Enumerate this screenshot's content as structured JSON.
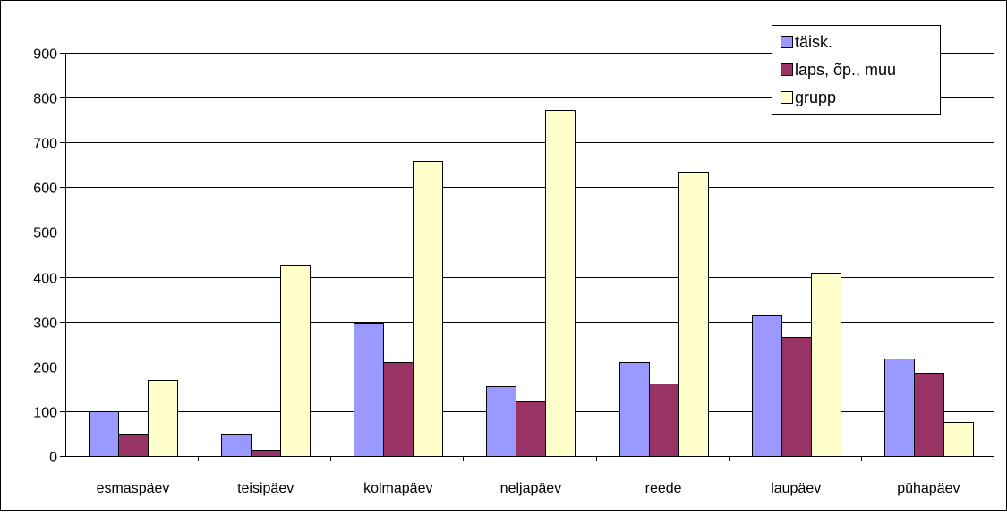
{
  "chart_data": {
    "type": "bar",
    "title": "",
    "xlabel": "",
    "ylabel": "",
    "ylim": [
      0,
      900
    ],
    "yticks": [
      0,
      100,
      200,
      300,
      400,
      500,
      600,
      700,
      800,
      900
    ],
    "yticks_text": [
      "0",
      "100",
      "200",
      "300",
      "400",
      "500",
      "600",
      "700",
      "800",
      "900"
    ],
    "grid": "horizontal",
    "legend_position": "top-right",
    "categories": [
      "esmaspäev",
      "teisipäev",
      "kolmapäev",
      "neljapäev",
      "reede",
      "laupäev",
      "pühapäev"
    ],
    "series": [
      {
        "name": "täisk.",
        "color": "#9999ff",
        "values": [
          100,
          50,
          297,
          155,
          210,
          315,
          217
        ]
      },
      {
        "name": "laps, õp., muu",
        "color": "#993366",
        "values": [
          50,
          13,
          210,
          122,
          162,
          265,
          185
        ]
      },
      {
        "name": "grupp",
        "color": "#ffffcc",
        "values": [
          170,
          428,
          658,
          773,
          635,
          410,
          75
        ]
      }
    ]
  }
}
